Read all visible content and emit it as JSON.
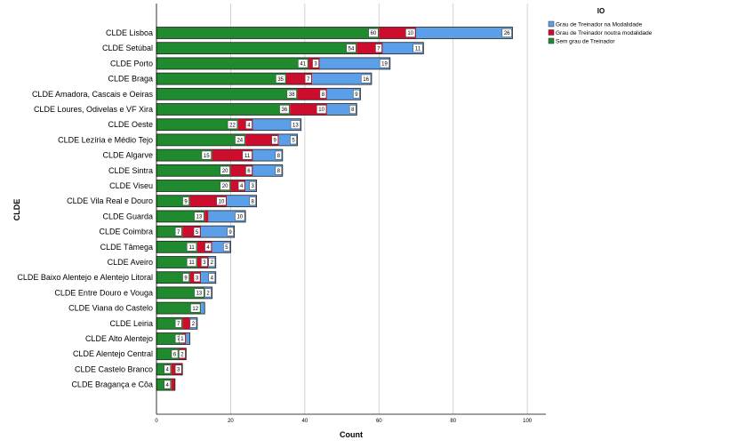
{
  "chart_data": {
    "type": "bar",
    "orientation": "horizontal",
    "stacked": true,
    "xlabel": "Count",
    "ylabel": "CLDE",
    "xlim": [
      0,
      105
    ],
    "xticks": [
      0,
      20,
      40,
      60,
      80,
      100
    ],
    "grid": true,
    "legend": {
      "title": "IO",
      "placement": "top-right"
    },
    "categories": [
      "CLDE Lisboa",
      "CLDE Setúbal",
      "CLDE Porto",
      "CLDE Braga",
      "CLDE Amadora, Cascais e Oeiras",
      "CLDE Loures, Odivelas e VF Xira",
      "CLDE Oeste",
      "CLDE Lezíria e Médio Tejo",
      "CLDE Algarve",
      "CLDE Sintra",
      "CLDE Viseu",
      "CLDE Vila Real e Douro",
      "CLDE Guarda",
      "CLDE Coimbra",
      "CLDE Tâmega",
      "CLDE Aveiro",
      "CLDE Baixo Alentejo e Alentejo Litoral",
      "CLDE Entre Douro e Vouga",
      "CLDE Viana do Castelo",
      "CLDE Leiria",
      "CLDE Alto Alentejo",
      "CLDE Alentejo Central",
      "CLDE Castelo Branco",
      "CLDE Bragança e Côa"
    ],
    "series": [
      {
        "name": "Sem grau de Treinador",
        "color": "#1f8a2e",
        "values": [
          60,
          54,
          41,
          35,
          38,
          36,
          22,
          24,
          15,
          20,
          20,
          9,
          13,
          7,
          11,
          11,
          9,
          13,
          12,
          7,
          7,
          6,
          4,
          4
        ]
      },
      {
        "name": "Grau de Treinador noutra modalidade",
        "color": "#cc0d2d",
        "values": [
          10,
          7,
          3,
          7,
          8,
          10,
          4,
          9,
          11,
          6,
          4,
          10,
          1,
          5,
          4,
          3,
          3,
          0,
          0,
          2,
          1,
          2,
          3,
          1
        ]
      },
      {
        "name": "Grau de Treinador na Modalidade",
        "color": "#5b9fe9",
        "values": [
          26,
          11,
          19,
          16,
          9,
          8,
          13,
          5,
          8,
          8,
          3,
          8,
          10,
          9,
          5,
          2,
          4,
          2,
          1,
          2,
          1,
          0,
          0,
          0
        ]
      }
    ],
    "data_labels": [
      [
        "60",
        "10",
        "26"
      ],
      [
        "54",
        "7",
        "11"
      ],
      [
        "41",
        "3",
        "19"
      ],
      [
        "35",
        "7",
        "16"
      ],
      [
        "38",
        "8",
        "9"
      ],
      [
        "36",
        "10",
        "8"
      ],
      [
        "22",
        "4",
        "13"
      ],
      [
        "24",
        "9",
        "5"
      ],
      [
        "15",
        "11",
        "8"
      ],
      [
        "20",
        "6",
        "8"
      ],
      [
        "20",
        "4",
        "3"
      ],
      [
        "9",
        "10",
        "8"
      ],
      [
        "13",
        "",
        "10"
      ],
      [
        "7",
        "5",
        "9"
      ],
      [
        "11",
        "4",
        "5"
      ],
      [
        "11",
        "3",
        "2"
      ],
      [
        "9",
        "3",
        "4"
      ],
      [
        "13",
        "",
        "2"
      ],
      [
        "12",
        "",
        ""
      ],
      [
        "7",
        "",
        "2"
      ],
      [
        "7",
        "1",
        ""
      ],
      [
        "6",
        "2",
        ""
      ],
      [
        "4",
        "3",
        ""
      ],
      [
        "4",
        "",
        ""
      ]
    ],
    "legend_order": [
      "Grau de Treinador na Modalidade",
      "Grau de Treinador noutra modalidade",
      "Sem grau de Treinador"
    ]
  }
}
